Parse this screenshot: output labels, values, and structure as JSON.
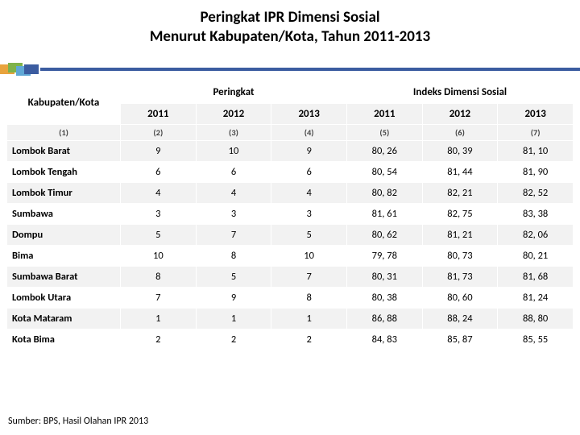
{
  "title_line1": "Peringkat IPR Dimensi Sosial",
  "title_line2": "Menurut Kabupaten/Kota, Tahun 2011-2013",
  "header": {
    "region": "Kabupaten/Kota",
    "group_rank": "Peringkat",
    "group_index": "Indeks Dimensi Sosial",
    "years": [
      "2011",
      "2012",
      "2013",
      "2011",
      "2012",
      "2013"
    ],
    "colnums": [
      "(1)",
      "(2)",
      "(3)",
      "(4)",
      "(5)",
      "(6)",
      "(7)"
    ]
  },
  "rows": [
    {
      "name": "Lombok Barat",
      "c": [
        "9",
        "10",
        "9",
        "80, 26",
        "80, 39",
        "81, 10"
      ]
    },
    {
      "name": "Lombok Tengah",
      "c": [
        "6",
        "6",
        "6",
        "80, 54",
        "81, 44",
        "81, 90"
      ]
    },
    {
      "name": "Lombok Timur",
      "c": [
        "4",
        "4",
        "4",
        "80, 82",
        "82, 21",
        "82, 52"
      ]
    },
    {
      "name": "Sumbawa",
      "c": [
        "3",
        "3",
        "3",
        "81, 61",
        "82, 75",
        "83, 38"
      ]
    },
    {
      "name": "Dompu",
      "c": [
        "5",
        "7",
        "5",
        "80, 62",
        "81, 21",
        "82, 06"
      ]
    },
    {
      "name": "Bima",
      "c": [
        "10",
        "8",
        "10",
        "79, 78",
        "80, 73",
        "80, 21"
      ]
    },
    {
      "name": "Sumbawa Barat",
      "c": [
        "8",
        "5",
        "7",
        "80, 31",
        "81, 73",
        "81, 68"
      ]
    },
    {
      "name": "Lombok Utara",
      "c": [
        "7",
        "9",
        "8",
        "80, 38",
        "80, 60",
        "81, 24"
      ]
    },
    {
      "name": "Kota Mataram",
      "c": [
        "1",
        "1",
        "1",
        "86, 88",
        "88, 24",
        "88, 80"
      ]
    },
    {
      "name": "Kota Bima",
      "c": [
        "2",
        "2",
        "2",
        "84, 83",
        "85, 87",
        "85, 55"
      ]
    }
  ],
  "source": "Sumber: BPS, Hasil Olahan IPR 2013",
  "colors": {
    "bar": "#3b5ca0",
    "block1": "#e8a33d",
    "block2": "#7fb24a",
    "block3": "#5fa8d6",
    "block4": "#3b5ca0",
    "row_alt_bg": "#f2f2f2",
    "row_bg": "#ffffff"
  }
}
